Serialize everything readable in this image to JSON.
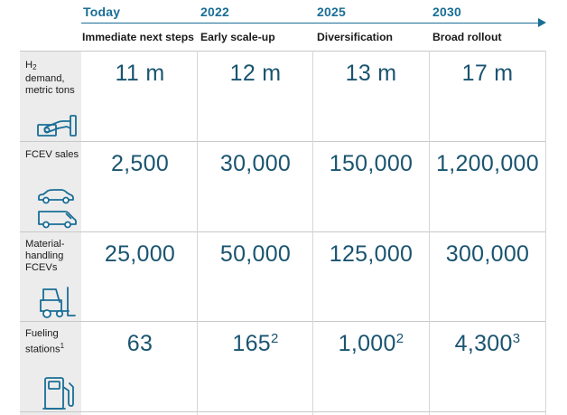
{
  "timeline": {
    "years": [
      "Today",
      "2022",
      "2025",
      "2030"
    ],
    "phases": [
      "Immediate next steps",
      "Early scale-up",
      "Diversification",
      "Broad rollout"
    ]
  },
  "rows": [
    {
      "label_parts": {
        "pre": "H",
        "sub": "2",
        "post": "demand, metric tons"
      },
      "values": [
        {
          "main": "11 m",
          "sup": ""
        },
        {
          "main": "12 m",
          "sup": ""
        },
        {
          "main": "13 m",
          "sup": ""
        },
        {
          "main": "17 m",
          "sup": ""
        }
      ],
      "icon": "hand-cash-icon"
    },
    {
      "label": "FCEV sales",
      "values": [
        {
          "main": "2,500",
          "sup": ""
        },
        {
          "main": "30,000",
          "sup": ""
        },
        {
          "main": "150,000",
          "sup": ""
        },
        {
          "main": "1,200,000",
          "sup": ""
        }
      ],
      "icons": [
        "car-icon",
        "van-icon"
      ]
    },
    {
      "label": "Material-handling FCEVs",
      "values": [
        {
          "main": "25,000",
          "sup": ""
        },
        {
          "main": "50,000",
          "sup": ""
        },
        {
          "main": "125,000",
          "sup": ""
        },
        {
          "main": "300,000",
          "sup": ""
        }
      ],
      "icon": "forklift-icon"
    },
    {
      "label_parts": {
        "pre": "Fueling stations",
        "sup": "1"
      },
      "values": [
        {
          "main": "63",
          "sup": ""
        },
        {
          "main": "165",
          "sup": "2"
        },
        {
          "main": "1,000",
          "sup": "2"
        },
        {
          "main": "4,300",
          "sup": "3"
        }
      ],
      "icon": "fuel-pump-icon"
    }
  ],
  "colors": {
    "accent": "#1a6e96",
    "value": "#1a5470",
    "side_column": "#ececec"
  }
}
